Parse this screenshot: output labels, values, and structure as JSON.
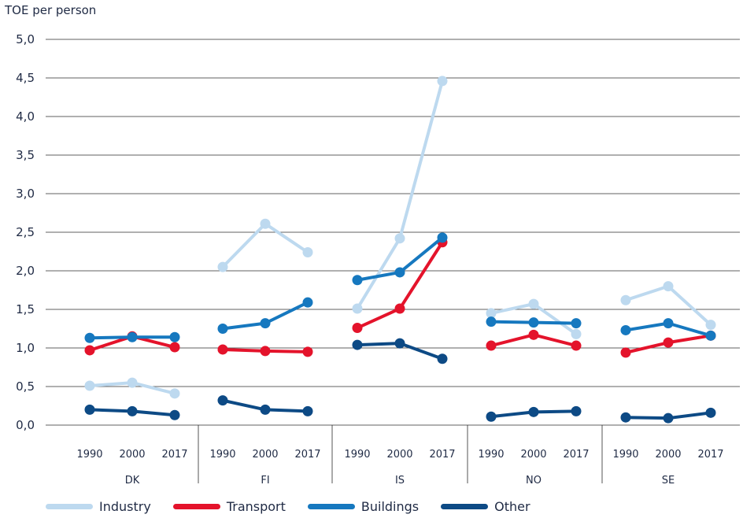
{
  "chart_data": {
    "type": "line",
    "ylabel": "TOE per person",
    "ylim": [
      0,
      5
    ],
    "yticks": [
      "0,0",
      "0,5",
      "1,0",
      "1,5",
      "2,0",
      "2,5",
      "3,0",
      "3,5",
      "4,0",
      "4,5",
      "5,0"
    ],
    "grid": true,
    "legend_position": "bottom",
    "groups": [
      {
        "name": "DK",
        "years": [
          "1990",
          "2000",
          "2017"
        ]
      },
      {
        "name": "FI",
        "years": [
          "1990",
          "2000",
          "2017"
        ]
      },
      {
        "name": "IS",
        "years": [
          "1990",
          "2000",
          "2017"
        ]
      },
      {
        "name": "NO",
        "years": [
          "1990",
          "2000",
          "2017"
        ]
      },
      {
        "name": "SE",
        "years": [
          "1990",
          "2000",
          "2017"
        ]
      }
    ],
    "series": [
      {
        "name": "Industry",
        "color": "#bdd9ef",
        "values": [
          [
            0.51,
            0.55,
            0.41
          ],
          [
            2.05,
            2.61,
            2.24
          ],
          [
            1.51,
            2.42,
            4.46
          ],
          [
            1.45,
            1.57,
            1.18
          ],
          [
            1.62,
            1.8,
            1.3
          ]
        ]
      },
      {
        "name": "Transport",
        "color": "#e4132b",
        "values": [
          [
            0.97,
            1.15,
            1.01
          ],
          [
            0.98,
            0.96,
            0.95
          ],
          [
            1.26,
            1.51,
            2.37
          ],
          [
            1.03,
            1.17,
            1.03
          ],
          [
            0.94,
            1.07,
            1.16
          ]
        ]
      },
      {
        "name": "Buildings",
        "color": "#1678bf",
        "values": [
          [
            1.13,
            1.14,
            1.14
          ],
          [
            1.25,
            1.32,
            1.59
          ],
          [
            1.88,
            1.98,
            2.43
          ],
          [
            1.34,
            1.33,
            1.32
          ],
          [
            1.23,
            1.32,
            1.16
          ]
        ]
      },
      {
        "name": "Other",
        "color": "#0d4a85",
        "values": [
          [
            0.2,
            0.18,
            0.13
          ],
          [
            0.32,
            0.2,
            0.18
          ],
          [
            1.04,
            1.06,
            0.86
          ],
          [
            0.11,
            0.17,
            0.18
          ],
          [
            0.1,
            0.09,
            0.16
          ]
        ]
      }
    ]
  }
}
